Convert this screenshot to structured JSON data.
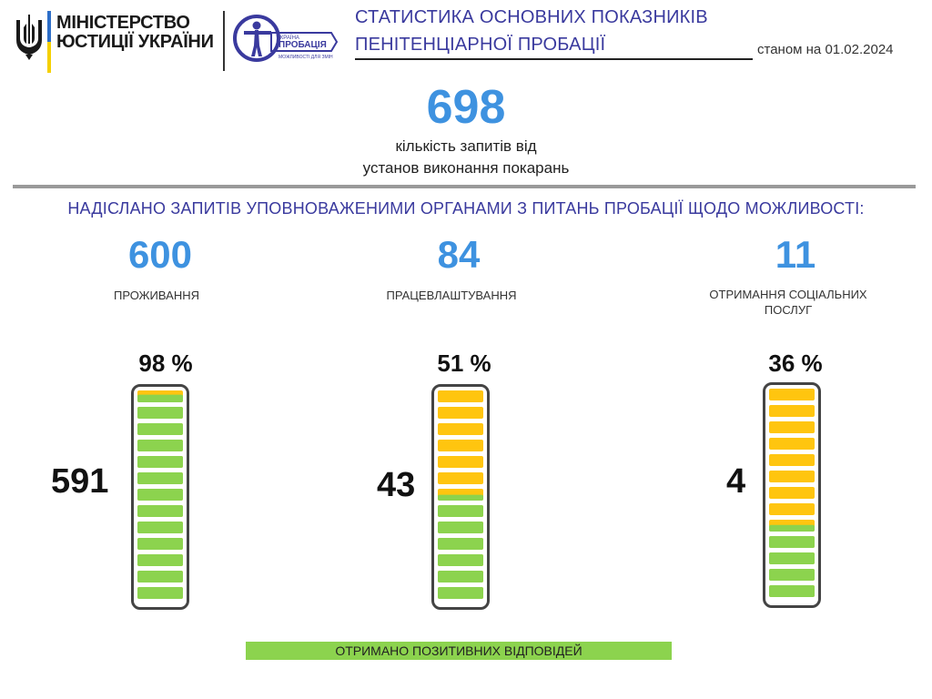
{
  "header": {
    "ministry_line1": "МІНІСТЕРСТВО",
    "ministry_line2": "ЮСТИЦІЇ УКРАЇНИ",
    "logo_line1": "УКРАЇНА",
    "logo_line2": "ПРОБАЦІЯ",
    "logo_line3": "МОЖЛИВОСТІ ДЛЯ ЗМІН",
    "title_line1": "СТАТИСТИКА ОСНОВНИХ ПОКАЗНИКІВ",
    "title_line2": "ПЕНІТЕНЦІАРНОЇ ПРОБАЦІЇ",
    "as_of": "станом на 01.02.2024"
  },
  "total": {
    "value": "698",
    "caption_line1": "кількість запитів від",
    "caption_line2": "установ виконання покарань"
  },
  "section_title": "НАДІСЛАНО ЗАПИТІВ УПОВНОВАЖЕНИМИ ОРГАНАМИ З ПИТАНЬ ПРОБАЦІЇ  ЩОДО МОЖЛИВОСТІ:",
  "categories": [
    {
      "value": "600",
      "label": "ПРОЖИВАННЯ",
      "label_line2": "",
      "percent_label": "98 %",
      "positive": "591",
      "fill": 0.98
    },
    {
      "value": "84",
      "label": "ПРАЦЕВЛАШТУВАННЯ",
      "label_line2": "",
      "percent_label": "51 %",
      "positive": "43",
      "fill": 0.51
    },
    {
      "value": "11",
      "label": "ОТРИМАННЯ  СОЦІАЛЬНИХ",
      "label_line2": "ПОСЛУГ",
      "percent_label": "36 %",
      "positive": "4",
      "fill": 0.36
    }
  ],
  "legend": "ОТРИМАНО  ПОЗИТИВНИХ ВІДПОВІДЕЙ",
  "colors": {
    "green": "#8cd34e",
    "yellow": "#ffc50f",
    "blue": "#3e92e0",
    "title": "#3a3a9e"
  },
  "icons": {
    "ministry": "trident-icon",
    "probation": "probation-logo-icon"
  }
}
